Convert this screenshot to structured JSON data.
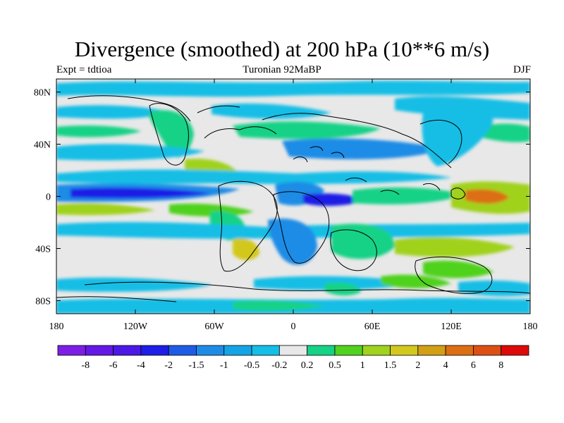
{
  "title": "Divergence (smoothed) at 200 hPa (10**6 m/s)",
  "subtitle_left": "Expt = tdtioa",
  "subtitle_center": "Turonian  92MaBP",
  "subtitle_right": "DJF",
  "map": {
    "projection": "cylindrical-equidistant",
    "lon_range": [
      -180,
      180
    ],
    "lat_range": [
      -90,
      90
    ],
    "lon_ticks": [
      {
        "value": -180,
        "label": "180"
      },
      {
        "value": -120,
        "label": "120W"
      },
      {
        "value": -60,
        "label": "60W"
      },
      {
        "value": 0,
        "label": "0"
      },
      {
        "value": 60,
        "label": "60E"
      },
      {
        "value": 120,
        "label": "120E"
      },
      {
        "value": 180,
        "label": "180"
      }
    ],
    "lat_ticks": [
      {
        "value": 80,
        "label": "80N"
      },
      {
        "value": 40,
        "label": "40N"
      },
      {
        "value": 0,
        "label": "0"
      },
      {
        "value": -40,
        "label": "40S"
      },
      {
        "value": -80,
        "label": "80S"
      }
    ]
  },
  "colorbar": {
    "colors": [
      "#7d1ee6",
      "#6418e6",
      "#4c18e6",
      "#1e1ee6",
      "#1f5ce6",
      "#1e8ce6",
      "#14a4e6",
      "#14bee6",
      "#e8e8e8",
      "#14d286",
      "#50d21e",
      "#a0d21e",
      "#d2c81e",
      "#d2a014",
      "#dc6e14",
      "#dc5014",
      "#dc0a0a"
    ],
    "labels": [
      "-8",
      "-6",
      "-4",
      "-2",
      "-1.5",
      "-1",
      "-0.5",
      "-0.2",
      "0.2",
      "0.5",
      "1",
      "1.5",
      "2",
      "4",
      "6",
      "8"
    ]
  }
}
